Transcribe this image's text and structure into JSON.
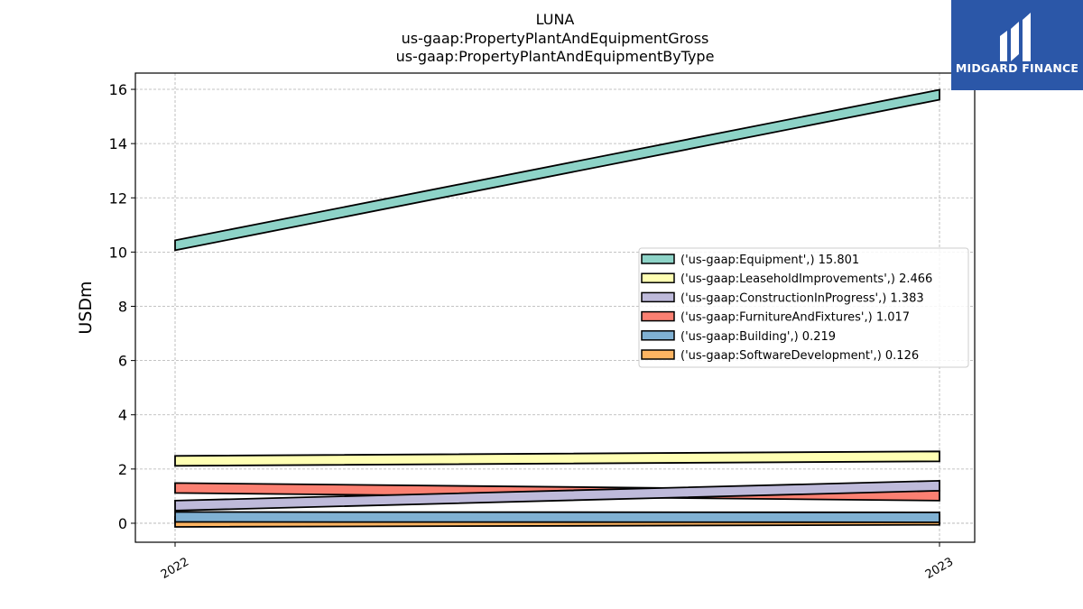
{
  "title_lines": [
    "LUNA",
    "us-gaap:PropertyPlantAndEquipmentGross",
    "us-gaap:PropertyPlantAndEquipmentByType"
  ],
  "logo": {
    "text": "MIDGARD FINANCE",
    "background": "#2b57a8"
  },
  "chart_data": {
    "type": "line",
    "title": "LUNA\nus-gaap:PropertyPlantAndEquipmentGross\nus-gaap:PropertyPlantAndEquipmentByType",
    "xlabel": "",
    "ylabel": "USDm",
    "x": [
      "2022",
      "2023"
    ],
    "ylim": [
      -0.7,
      16.6
    ],
    "yticks": [
      0,
      2,
      4,
      6,
      8,
      10,
      12,
      14,
      16
    ],
    "grid": true,
    "legend_position": "center-right",
    "series": [
      {
        "name": "('us-gaap:Equipment',)",
        "legend_label": "('us-gaap:Equipment',) 15.801",
        "values": [
          10.25,
          15.801
        ],
        "color": "#8dd3c7"
      },
      {
        "name": "('us-gaap:LeaseholdImprovements',)",
        "legend_label": "('us-gaap:LeaseholdImprovements',) 2.466",
        "values": [
          2.3,
          2.466
        ],
        "color": "#ffffb3"
      },
      {
        "name": "('us-gaap:ConstructionInProgress',)",
        "legend_label": "('us-gaap:ConstructionInProgress',) 1.383",
        "values": [
          0.65,
          1.383
        ],
        "color": "#bebada"
      },
      {
        "name": "('us-gaap:FurnitureAndFixtures',)",
        "legend_label": "('us-gaap:FurnitureAndFixtures',) 1.017",
        "values": [
          1.3,
          1.017
        ],
        "color": "#fb8072"
      },
      {
        "name": "('us-gaap:Building',)",
        "legend_label": "('us-gaap:Building',) 0.219",
        "values": [
          0.23,
          0.219
        ],
        "color": "#80b1d3"
      },
      {
        "name": "('us-gaap:SoftwareDevelopment',)",
        "legend_label": "('us-gaap:SoftwareDevelopment',) 0.126",
        "values": [
          0.05,
          0.126
        ],
        "color": "#fdb462"
      }
    ]
  }
}
